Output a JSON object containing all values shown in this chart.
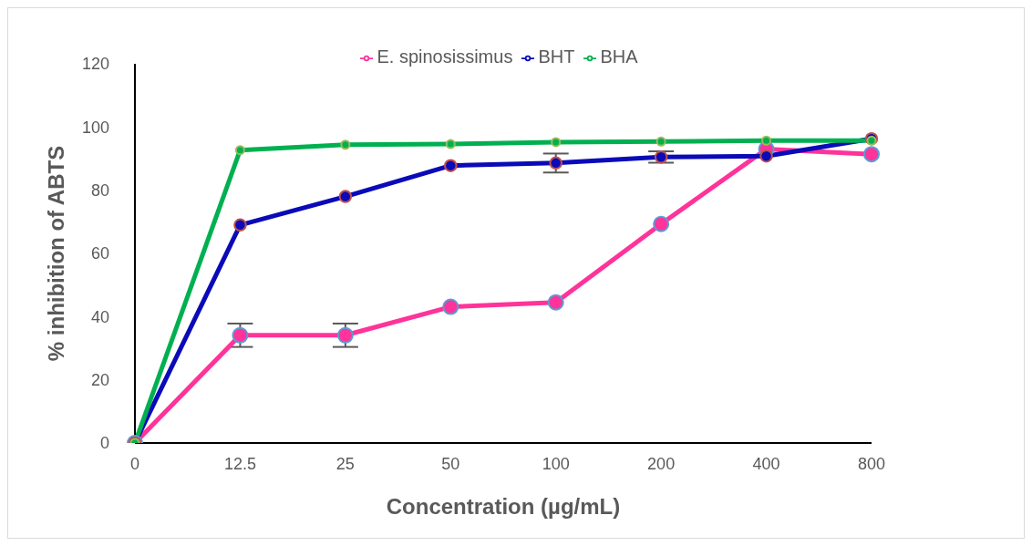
{
  "chart_data": {
    "type": "line",
    "xlabel": "Concentration (µg/mL)",
    "ylabel": "% inhibition of ABTS",
    "categories": [
      "0",
      "12.5",
      "25",
      "50",
      "100",
      "200",
      "400",
      "800"
    ],
    "series": [
      {
        "name": "E. spinosissimus",
        "color": "#ff3399",
        "values": [
          0,
          34.1,
          34.1,
          43.1,
          44.5,
          69.3,
          93,
          91.4
        ],
        "errors": [
          null,
          3.7,
          3.7,
          null,
          null,
          null,
          null,
          null
        ]
      },
      {
        "name": "BHT",
        "color": "#0a0ab8",
        "values": [
          0,
          69,
          78,
          87.8,
          88.6,
          90.5,
          90.8,
          96.3
        ],
        "errors": [
          null,
          null,
          null,
          null,
          3,
          1.8,
          null,
          null
        ]
      },
      {
        "name": "BHA",
        "color": "#00b050",
        "values": [
          0,
          92.7,
          94.4,
          94.6,
          95.2,
          95.4,
          95.7,
          95.7
        ]
      }
    ],
    "ylim": [
      0,
      120
    ],
    "yticks": [
      0,
      20,
      40,
      60,
      80,
      100,
      120
    ],
    "grid": false,
    "legend": "top",
    "marker": "circle",
    "line_style": "solid"
  }
}
